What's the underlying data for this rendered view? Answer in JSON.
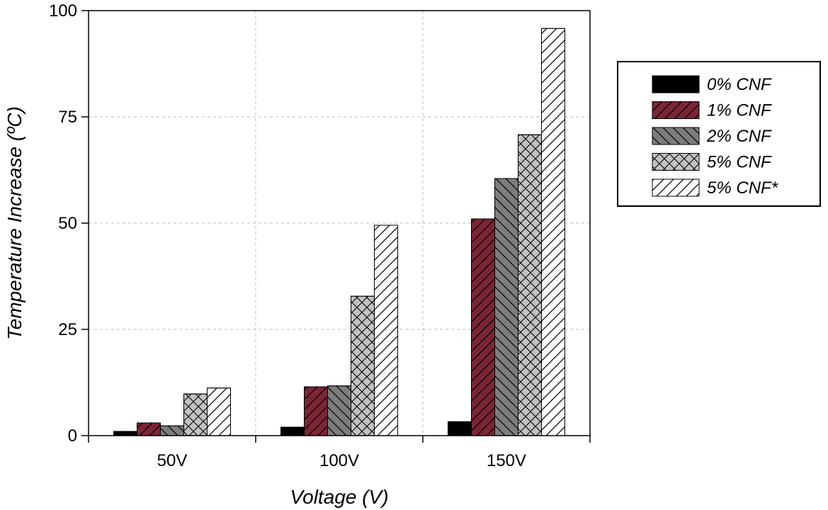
{
  "chart_data": {
    "type": "bar",
    "xlabel": "Voltage (V)",
    "ylabel": "Temperature Increase (ºC)",
    "ylim": [
      0,
      100
    ],
    "yticks": [
      "0",
      "25",
      "50",
      "75",
      "100"
    ],
    "categories": [
      "50V",
      "100V",
      "150V"
    ],
    "grid": true,
    "legend_position": "right",
    "series": [
      {
        "name": "0% CNF",
        "values": [
          1.0,
          2.0,
          3.3
        ],
        "color": "#000000",
        "pattern": "solid"
      },
      {
        "name": "1% CNF",
        "values": [
          3.0,
          11.5,
          51.0
        ],
        "color": "#7a2535",
        "pattern": "diagonal-right"
      },
      {
        "name": "2% CNF",
        "values": [
          2.3,
          11.7,
          60.5
        ],
        "color": "#7d7d7d",
        "pattern": "diagonal-left"
      },
      {
        "name": "5% CNF",
        "values": [
          9.8,
          32.8,
          70.8
        ],
        "color": "#c2c2c2",
        "pattern": "crosshatch"
      },
      {
        "name": "5% CNF*",
        "values": [
          11.2,
          49.5,
          95.8
        ],
        "color": "#ffffff",
        "pattern": "diagonal-right"
      }
    ]
  }
}
